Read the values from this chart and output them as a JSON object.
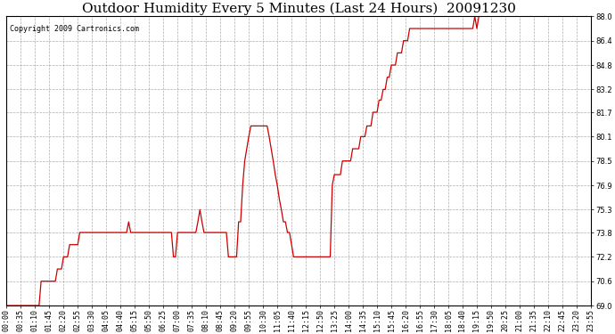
{
  "title": "Outdoor Humidity Every 5 Minutes (Last 24 Hours)  20091230",
  "copyright_text": "Copyright 2009 Cartronics.com",
  "line_color": "#cc0000",
  "bg_color": "#ffffff",
  "plot_bg_color": "#ffffff",
  "grid_color": "#999999",
  "ylim": [
    69.0,
    88.0
  ],
  "yticks": [
    69.0,
    70.6,
    72.2,
    73.8,
    75.3,
    76.9,
    78.5,
    80.1,
    81.7,
    83.2,
    84.8,
    86.4,
    88.0
  ],
  "title_fontsize": 11,
  "tick_fontsize": 6,
  "humidity_values": [
    69.0,
    69.0,
    69.0,
    69.0,
    69.0,
    69.0,
    69.0,
    69.0,
    69.0,
    69.0,
    69.0,
    69.0,
    69.0,
    69.0,
    69.0,
    69.0,
    69.0,
    70.6,
    70.6,
    70.6,
    70.6,
    70.6,
    70.6,
    70.6,
    70.6,
    71.4,
    71.4,
    71.4,
    72.2,
    72.2,
    72.2,
    73.0,
    73.0,
    73.0,
    73.0,
    73.0,
    73.8,
    73.8,
    73.8,
    73.8,
    73.8,
    73.8,
    73.8,
    73.8,
    73.8,
    73.8,
    73.8,
    73.8,
    73.8,
    73.8,
    73.8,
    73.8,
    73.8,
    73.8,
    73.8,
    73.8,
    73.8,
    73.8,
    73.8,
    73.8,
    74.5,
    73.8,
    73.8,
    73.8,
    73.8,
    73.8,
    73.8,
    73.8,
    73.8,
    73.8,
    73.8,
    73.8,
    73.8,
    73.8,
    73.8,
    73.8,
    73.8,
    73.8,
    73.8,
    73.8,
    73.8,
    73.8,
    72.2,
    72.2,
    73.8,
    73.8,
    73.8,
    73.8,
    73.8,
    73.8,
    73.8,
    73.8,
    73.8,
    73.8,
    74.5,
    75.3,
    74.5,
    73.8,
    73.8,
    73.8,
    73.8,
    73.8,
    73.8,
    73.8,
    73.8,
    73.8,
    73.8,
    73.8,
    73.8,
    72.2,
    72.2,
    72.2,
    72.2,
    72.2,
    74.5,
    74.5,
    76.9,
    78.5,
    79.3,
    80.1,
    80.8,
    80.8,
    80.8,
    80.8,
    80.8,
    80.8,
    80.8,
    80.8,
    80.8,
    80.1,
    79.3,
    78.5,
    77.6,
    76.9,
    76.0,
    75.3,
    74.5,
    74.5,
    73.8,
    73.8,
    73.0,
    72.2,
    72.2,
    72.2,
    72.2,
    72.2,
    72.2,
    72.2,
    72.2,
    72.2,
    72.2,
    72.2,
    72.2,
    72.2,
    72.2,
    72.2,
    72.2,
    72.2,
    72.2,
    72.2,
    76.9,
    77.6,
    77.6,
    77.6,
    77.6,
    78.5,
    78.5,
    78.5,
    78.5,
    78.5,
    79.3,
    79.3,
    79.3,
    79.3,
    80.1,
    80.1,
    80.1,
    80.8,
    80.8,
    80.8,
    81.7,
    81.7,
    81.7,
    82.5,
    82.5,
    83.2,
    83.2,
    84.0,
    84.0,
    84.8,
    84.8,
    84.8,
    85.6,
    85.6,
    85.6,
    86.4,
    86.4,
    86.4,
    87.2,
    87.2,
    87.2,
    87.2,
    87.2,
    87.2,
    87.2,
    87.2,
    87.2,
    87.2,
    87.2,
    87.2,
    87.2,
    87.2,
    87.2,
    87.2,
    87.2,
    87.2,
    87.2,
    87.2,
    87.2,
    87.2,
    87.2,
    87.2,
    87.2,
    87.2,
    87.2,
    87.2,
    87.2,
    87.2,
    87.2,
    87.2,
    88.0,
    87.2,
    88.0,
    88.0,
    88.0,
    88.0,
    88.0,
    88.0,
    88.0,
    88.0,
    88.0,
    88.0,
    88.0,
    88.0,
    88.0,
    88.0,
    88.0,
    88.0,
    88.0,
    88.0,
    88.0,
    88.0,
    88.0,
    88.0,
    88.0,
    88.0,
    88.0,
    88.0,
    88.0,
    88.0,
    88.0,
    88.0,
    88.0,
    88.0,
    88.0,
    88.0,
    88.0,
    88.0,
    88.0,
    88.0,
    88.0,
    88.0,
    88.0,
    88.0,
    88.0,
    88.0,
    88.0,
    88.0,
    88.0,
    88.0,
    88.0,
    88.0,
    88.0,
    88.0,
    88.0,
    88.0,
    88.0,
    88.0
  ],
  "xtick_labels": [
    "00:00",
    "00:35",
    "01:10",
    "01:45",
    "02:20",
    "02:55",
    "03:30",
    "04:05",
    "04:40",
    "05:15",
    "05:50",
    "06:25",
    "07:00",
    "07:35",
    "08:10",
    "08:45",
    "09:20",
    "09:55",
    "10:30",
    "11:05",
    "11:40",
    "12:15",
    "12:50",
    "13:25",
    "14:00",
    "14:35",
    "15:10",
    "15:45",
    "16:20",
    "16:55",
    "17:30",
    "18:05",
    "18:40",
    "19:15",
    "19:50",
    "20:25",
    "21:00",
    "21:35",
    "22:10",
    "22:45",
    "23:20",
    "23:55"
  ]
}
